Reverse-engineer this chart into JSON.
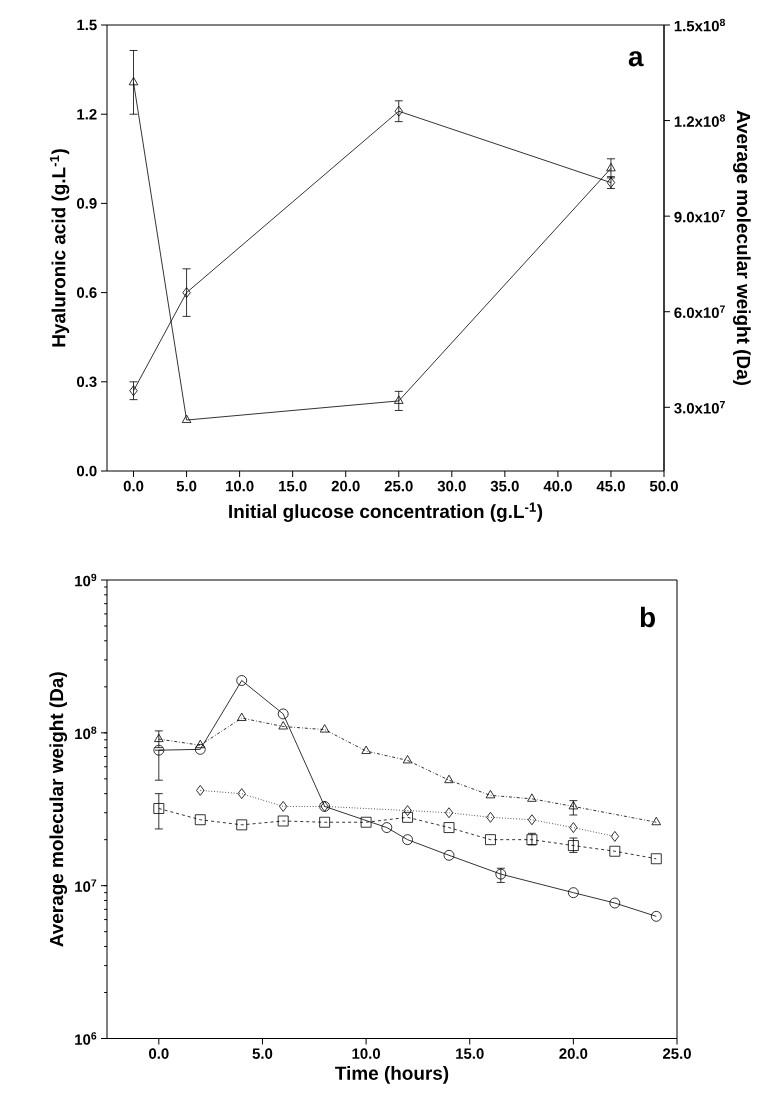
{
  "chart_data": [
    {
      "type": "line",
      "xlabel": "Initial glucose concentration (g.L$^{-1}$)",
      "ylabel": "Hyaluronic acid (g.L$^{-1}$)",
      "y2label": "Average molecular weight (Da)",
      "annotations": [
        "a"
      ],
      "x": [
        0,
        5,
        25,
        45
      ],
      "xlim": [
        -2.5,
        50
      ],
      "xticks": [
        {
          "value": 0,
          "label": "0.0"
        },
        {
          "value": 5,
          "label": "5.0"
        },
        {
          "value": 10,
          "label": "10.0"
        },
        {
          "value": 15,
          "label": "15.0"
        },
        {
          "value": 20,
          "label": "20.0"
        },
        {
          "value": 25,
          "label": "25.0"
        },
        {
          "value": 30,
          "label": "30.0"
        },
        {
          "value": 35,
          "label": "35.0"
        },
        {
          "value": 40,
          "label": "40.0"
        },
        {
          "value": 45,
          "label": "45.0"
        },
        {
          "value": 50,
          "label": "50.0"
        }
      ],
      "ylim": [
        0,
        1.5
      ],
      "yticks": [
        {
          "value": 0,
          "label": "0.0"
        },
        {
          "value": 0.3,
          "label": "0.3"
        },
        {
          "value": 0.6,
          "label": "0.6"
        },
        {
          "value": 0.9,
          "label": "0.9"
        },
        {
          "value": 1.2,
          "label": "1.2"
        },
        {
          "value": 1.5,
          "label": "1.5"
        }
      ],
      "y2lim": [
        10000000,
        150000000
      ],
      "y2ticks": [
        {
          "value": 30000000,
          "label": "3.0x10$^{7}$"
        },
        {
          "value": 60000000,
          "label": "6.0x10$^{7}$"
        },
        {
          "value": 90000000,
          "label": "9.0x10$^{7}$"
        },
        {
          "value": 120000000,
          "label": "1.2x10$^{8}$"
        },
        {
          "value": 150000000,
          "label": "1.5x10$^{8}$"
        }
      ],
      "series": [
        {
          "color": "#000000",
          "marker": "diamond",
          "line_style": "solid",
          "values": [
            0.27,
            0.6,
            1.21,
            0.97
          ],
          "errors": [
            0.03,
            0.08,
            0.035,
            0.02
          ]
        },
        {
          "color": "#000000",
          "marker": "triangle",
          "line_style": "solid",
          "axis": "y2",
          "values": [
            132000000,
            26000000,
            32000000,
            105000000
          ],
          "errors": [
            10000000,
            null,
            3000000,
            3000000
          ]
        }
      ]
    },
    {
      "type": "line",
      "xlabel": "Time (hours)",
      "ylabel": "Average molecular weight (Da)",
      "annotations": [
        "b"
      ],
      "log": "y",
      "xlim": [
        -2.5,
        25
      ],
      "xticks": [
        {
          "value": 0,
          "label": "0.0"
        },
        {
          "value": 5,
          "label": "5.0"
        },
        {
          "value": 10,
          "label": "10.0"
        },
        {
          "value": 15,
          "label": "15.0"
        },
        {
          "value": 20,
          "label": "20.0"
        },
        {
          "value": 25,
          "label": "25.0"
        }
      ],
      "ylim": [
        1000000,
        1000000000
      ],
      "yticks": [
        {
          "value": 1000000,
          "label": "10$^{6}$"
        },
        {
          "value": 10000000,
          "label": "10$^{7}$"
        },
        {
          "value": 100000000,
          "label": "10$^{8}$"
        },
        {
          "value": 1000000000,
          "label": "10$^{9}$"
        }
      ],
      "series": [
        {
          "color": "#000000",
          "marker": "circle",
          "line_style": "solid",
          "x": [
            0,
            2,
            4,
            6,
            8,
            11,
            12,
            14,
            16.5,
            20,
            22,
            24
          ],
          "values": [
            77000000,
            78000000,
            220000000,
            133000000,
            33000000,
            24000000,
            20000000,
            15800000,
            11900000,
            9000000,
            7700000,
            6300000
          ],
          "errors": [
            [
              49000000,
              77000000
            ],
            null,
            null,
            null,
            null,
            null,
            null,
            null,
            [
              10500000,
              13000000
            ],
            null,
            null,
            null
          ]
        },
        {
          "color": "#000000",
          "marker": "triangle",
          "line_style": "dashdot",
          "x": [
            0,
            2,
            4,
            6,
            8,
            10,
            12,
            14,
            16,
            18,
            20,
            24
          ],
          "values": [
            91000000,
            83000000,
            125000000,
            110000000,
            105000000,
            76000000,
            66000000,
            49000000,
            39000000,
            37000000,
            33000000,
            26000000
          ],
          "errors": [
            [
              80000000,
              103000000
            ],
            null,
            null,
            null,
            null,
            null,
            null,
            null,
            null,
            null,
            [
              29000000,
              36000000
            ],
            null
          ]
        },
        {
          "color": "#000000",
          "marker": "diamond",
          "line_style": "dotted",
          "x": [
            2,
            4,
            6,
            8,
            12,
            14,
            16,
            18,
            20,
            22
          ],
          "values": [
            42000000,
            40000000,
            33000000,
            33000000,
            31000000,
            30000000,
            28000000,
            27000000,
            24000000,
            21000000
          ]
        },
        {
          "color": "#000000",
          "marker": "square",
          "line_style": "dashed",
          "x": [
            0,
            2,
            4,
            6,
            8,
            10,
            12,
            14,
            16,
            18,
            20,
            22,
            24
          ],
          "values": [
            32000000,
            27000000,
            25000000,
            26500000,
            26000000,
            26000000,
            28000000,
            24000000,
            20000000,
            20000000,
            18300000,
            16800000,
            15000000
          ],
          "errors": [
            [
              23500000,
              40000000
            ],
            null,
            null,
            null,
            null,
            null,
            null,
            null,
            null,
            [
              18500000,
              22000000
            ],
            [
              16500000,
              20500000
            ],
            null,
            null
          ]
        }
      ]
    }
  ]
}
